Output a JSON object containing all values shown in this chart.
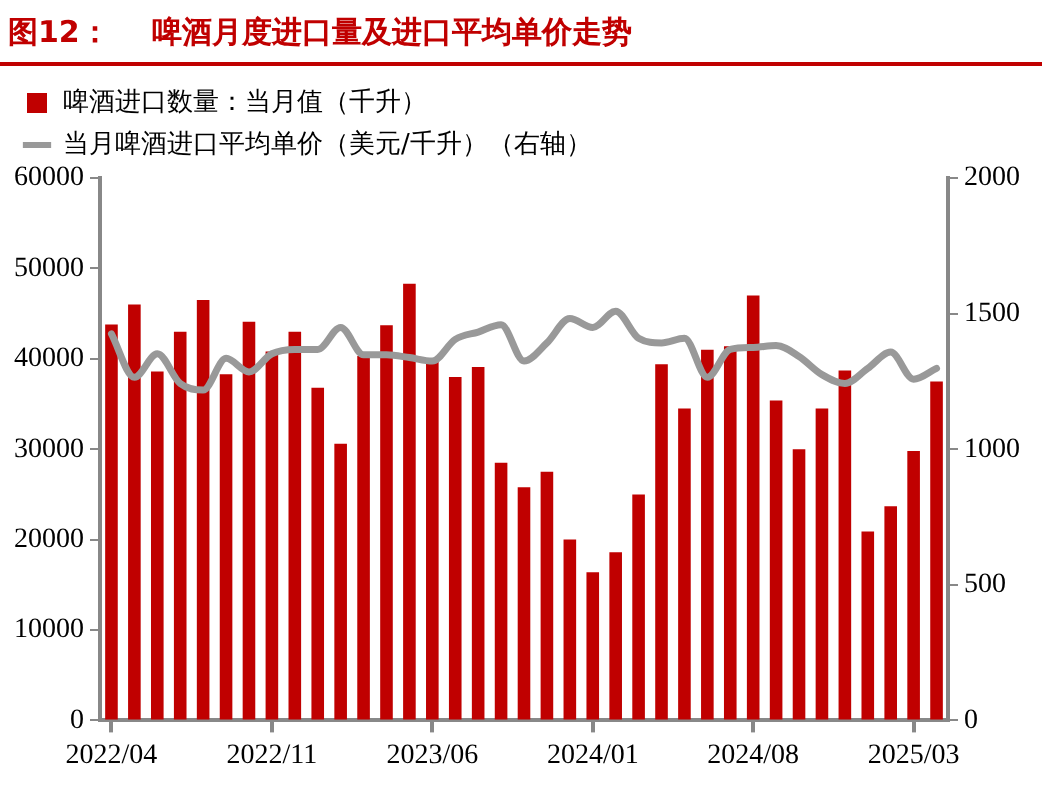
{
  "chart_data": {
    "type": "bar",
    "title": "图12：    啤酒月度进口量及进口平均单价走势",
    "categories": [
      "2022/04",
      null,
      null,
      null,
      null,
      null,
      null,
      "2022/11",
      null,
      null,
      null,
      null,
      null,
      null,
      "2023/06",
      null,
      null,
      null,
      null,
      null,
      null,
      "2024/01",
      null,
      null,
      null,
      null,
      null,
      null,
      "2024/08",
      null,
      null,
      null,
      null,
      null,
      null,
      "2025/03",
      null
    ],
    "series": [
      {
        "name": "啤酒进口数量：当月值（千升）",
        "color": "#c00000",
        "values": [
          43800,
          46000,
          38600,
          43000,
          46500,
          38300,
          44100,
          40800,
          43000,
          36800,
          30600,
          40300,
          43700,
          48300,
          39800,
          38000,
          39100,
          28500,
          25800,
          27500,
          20000,
          16400,
          18600,
          25000,
          39400,
          34500,
          41000,
          41400,
          47000,
          35400,
          30000,
          34500,
          38700,
          20900,
          23700,
          29800,
          37500
        ]
      },
      {
        "name": "当月啤酒进口平均单价（美元/千升）（右轴）",
        "type": "line",
        "axis": "y2",
        "color": "#999999",
        "values": [
          1425,
          1265,
          1352,
          1242,
          1218,
          1335,
          1285,
          1352,
          1368,
          1368,
          1449,
          1348,
          1348,
          1338,
          1325,
          1405,
          1432,
          1459,
          1325,
          1392,
          1482,
          1449,
          1509,
          1409,
          1392,
          1409,
          1265,
          1368,
          1375,
          1382,
          1342,
          1275,
          1242,
          1298,
          1358,
          1258,
          1298
        ]
      }
    ],
    "ylim": [
      0,
      60000
    ],
    "yticks": [
      0,
      10000,
      20000,
      30000,
      40000,
      50000,
      60000
    ],
    "y2lim": [
      0,
      2000
    ],
    "y2ticks": [
      0,
      500,
      1000,
      1500,
      2000
    ],
    "legend": "top",
    "grid": false
  }
}
